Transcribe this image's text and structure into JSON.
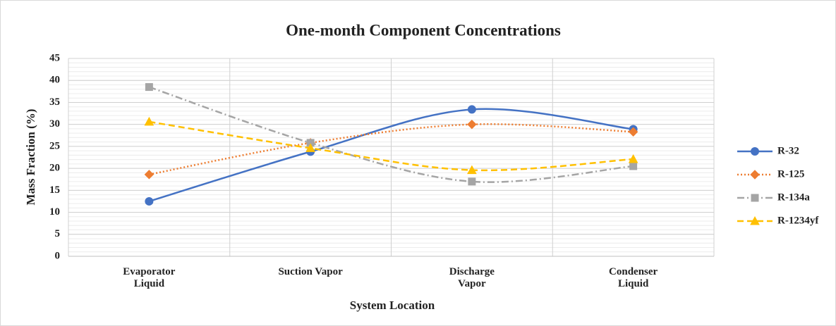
{
  "chart_data": {
    "type": "line",
    "title": "One-month Component Concentrations",
    "x_label": "System Location",
    "y_label": "Mass Fraction (%)",
    "categories": [
      "Evaporator Liquid",
      "Suction Vapor",
      "Discharge Vapor",
      "Condenser Liquid"
    ],
    "series": [
      {
        "name": "R-32",
        "color": "#4472c4",
        "line_style": "solid",
        "marker": "circle",
        "values": [
          12.5,
          23.8,
          33.4,
          28.9
        ]
      },
      {
        "name": "R-125",
        "color": "#ed7d31",
        "line_style": "dotted",
        "marker": "diamond",
        "values": [
          18.6,
          25.8,
          30.0,
          28.3
        ]
      },
      {
        "name": "R-134a",
        "color": "#a5a5a5",
        "line_style": "dashdot",
        "marker": "square",
        "values": [
          38.5,
          25.8,
          17.0,
          20.5
        ]
      },
      {
        "name": "R-1234yf",
        "color": "#ffc000",
        "line_style": "dashed",
        "marker": "triangle",
        "values": [
          30.6,
          24.6,
          19.6,
          22.1
        ]
      }
    ],
    "ylim": [
      0,
      45
    ],
    "yticks": [
      0,
      5,
      10,
      15,
      20,
      25,
      30,
      35,
      40,
      45
    ],
    "grid": true,
    "minor_grid": true,
    "smooth": true,
    "legend": "right"
  }
}
